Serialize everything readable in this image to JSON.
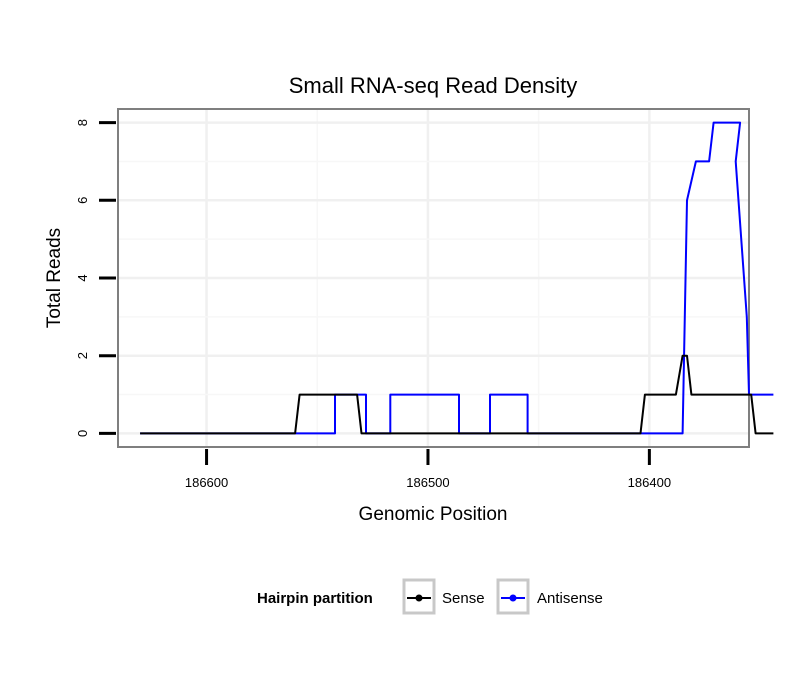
{
  "chart_data": {
    "type": "line",
    "title": "Small RNA-seq Read Density",
    "xlabel": "Genomic Position",
    "ylabel": "Total Reads",
    "x_reversed": true,
    "xlim": [
      186640,
      186355
    ],
    "ylim": [
      -0.35,
      8.35
    ],
    "x_ticks": [
      186600,
      186500,
      186400
    ],
    "x_tick_labels": [
      "186600",
      "186500",
      "186400"
    ],
    "y_ticks": [
      0,
      2,
      4,
      6,
      8
    ],
    "y_tick_labels": [
      "0",
      "2",
      "4",
      "6",
      "8"
    ],
    "grid": true,
    "legend": {
      "title": "Hairpin partition",
      "placement": "bottom",
      "entries": [
        "Sense",
        "Antisense"
      ]
    },
    "series": [
      {
        "name": "Antisense",
        "color": "#0000ff",
        "x": [
          186630,
          186554,
          186554,
          186542,
          186542,
          186528,
          186528,
          186517,
          186517,
          186500,
          186486,
          186486,
          186472,
          186472,
          186455,
          186455,
          186398,
          186385,
          186383,
          186379,
          186379,
          186373,
          186371,
          186359,
          186361,
          186356,
          186355,
          186344
        ],
        "y": [
          0,
          0,
          0,
          0,
          1,
          1,
          0,
          0,
          1,
          1,
          1,
          0,
          0,
          1,
          1,
          0,
          0,
          0,
          6,
          7,
          7,
          7,
          8,
          8,
          7,
          3,
          1,
          1
        ]
      },
      {
        "name": "Sense",
        "color": "#000000",
        "x": [
          186630,
          186560,
          186558,
          186542,
          186532,
          186530,
          186500,
          186450,
          186404,
          186402,
          186389,
          186388,
          186385,
          186383,
          186381,
          186378,
          186356,
          186354,
          186352,
          186344
        ],
        "y": [
          0,
          0,
          1,
          1,
          1,
          0,
          0,
          0,
          0,
          1,
          1,
          1,
          2,
          2,
          1,
          1,
          1,
          1,
          0,
          0
        ]
      }
    ]
  }
}
